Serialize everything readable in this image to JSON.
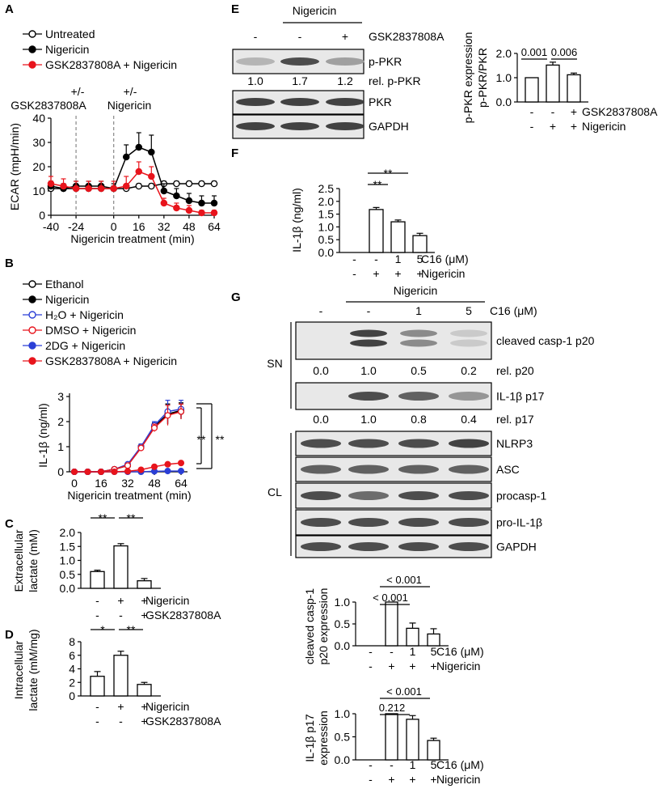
{
  "panelA": {
    "letter": "A",
    "legend": [
      "Untreated",
      "Nigericin",
      "GSK2837808A + Nigericin"
    ],
    "annot1": [
      "+/-",
      "GSK2837808A"
    ],
    "annot2": [
      "+/-",
      "Nigericin"
    ],
    "ylabel": "ECAR (mpH/min)",
    "xlabel": "Nigericin treatment (min)",
    "yticks": [
      "0",
      "10",
      "20",
      "30",
      "40"
    ],
    "xticks": [
      "-40",
      "-24",
      "0",
      "16",
      "32",
      "48",
      "64"
    ],
    "colors": {
      "untreated": "#000000",
      "nigericin": "#000000",
      "gsk": "#e8141c"
    }
  },
  "panelB": {
    "letter": "B",
    "legend": [
      "Ethanol",
      "Nigericin",
      "H₂O + Nigericin",
      "DMSO + Nigericin",
      "2DG + Nigericin",
      "GSK2837808A + Nigericin"
    ],
    "ylabel": "IL-1β (ng/ml)",
    "xlabel": "Nigericin treatment (min)",
    "yticks": [
      "0",
      "1",
      "2",
      "3"
    ],
    "xticks": [
      "0",
      "16",
      "32",
      "48",
      "64"
    ],
    "sig": [
      "**",
      "**"
    ],
    "colors": {
      "h2o": "#2b3fd6",
      "dmso": "#e8141c",
      "twoDG": "#2b3fd6",
      "gsk": "#e8141c"
    }
  },
  "panelC": {
    "letter": "C",
    "ylabel": [
      "Extracellular",
      "lactate (mM)"
    ],
    "yticks": [
      "0.0",
      "0.5",
      "1.0",
      "1.5",
      "2.0"
    ],
    "sig": [
      "**",
      "**"
    ],
    "rows": [
      {
        "label": "Nigericin",
        "vals": [
          "-",
          "+",
          "+"
        ]
      },
      {
        "label": "GSK2837808A",
        "vals": [
          "-",
          "-",
          "+"
        ]
      }
    ]
  },
  "panelD": {
    "letter": "D",
    "ylabel": [
      "Intracellular",
      "lactate (mM/mg)"
    ],
    "yticks": [
      "0",
      "2",
      "4",
      "6",
      "8"
    ],
    "sig": [
      "*",
      "**"
    ],
    "rows": [
      {
        "label": "Nigericin",
        "vals": [
          "-",
          "+",
          "+"
        ]
      },
      {
        "label": "GSK2837808A",
        "vals": [
          "-",
          "-",
          "+"
        ]
      }
    ]
  },
  "panelE": {
    "letter": "E",
    "header": "Nigericin",
    "gsk_label": "GSK2837808A",
    "gsk_vals": [
      "-",
      "-",
      "+"
    ],
    "bands": [
      "p-PKR",
      "PKR",
      "GAPDH"
    ],
    "rel_label": "rel. p-PKR",
    "rel_vals": [
      "1.0",
      "1.7",
      "1.2"
    ],
    "ylabel": [
      "p-PKR expression",
      "p-PKR/PKR"
    ],
    "yticks": [
      "0.0",
      "1.0",
      "2.0"
    ],
    "pvals": [
      "0.001",
      "0.006"
    ],
    "rows": [
      {
        "label": "GSK2837808A",
        "vals": [
          "-",
          "-",
          "+"
        ]
      },
      {
        "label": "Nigericin",
        "vals": [
          "-",
          "+",
          "+"
        ]
      }
    ]
  },
  "panelF": {
    "letter": "F",
    "ylabel": "IL-1β (ng/ml)",
    "yticks": [
      "0.0",
      "0.5",
      "1.0",
      "1.5",
      "2.0",
      "2.5"
    ],
    "sig": [
      "**",
      "**"
    ],
    "rows": [
      {
        "label": "C16 (μM)",
        "vals": [
          "-",
          "-",
          "1",
          "5"
        ]
      },
      {
        "label": "Nigericin",
        "vals": [
          "-",
          "+",
          "+",
          "+"
        ]
      }
    ]
  },
  "panelG": {
    "letter": "G",
    "header": "Nigericin",
    "c16_label": "C16 (μM)",
    "c16_vals": [
      "-",
      "-",
      "1",
      "5"
    ],
    "sn": "SN",
    "cl": "CL",
    "bands": [
      "cleaved casp-1 p20",
      "IL-1β p17",
      "NLRP3",
      "ASC",
      "procasp-1",
      "pro-IL-1β",
      "GAPDH"
    ],
    "rel_p20_label": "rel. p20",
    "rel_p20": [
      "0.0",
      "1.0",
      "0.5",
      "0.2"
    ],
    "rel_p17_label": "rel. p17",
    "rel_p17": [
      "0.0",
      "1.0",
      "0.8",
      "0.4"
    ],
    "bar1": {
      "ylabel": [
        "cleaved casp-1",
        "p20 expression"
      ],
      "yticks": [
        "0.0",
        "0.5",
        "1.0"
      ],
      "pvals": [
        "< 0.001",
        "< 0.001"
      ]
    },
    "bar2": {
      "ylabel": [
        "IL-1β p17",
        "expression"
      ],
      "yticks": [
        "0.0",
        "0.5",
        "1.0"
      ],
      "pvals": [
        "< 0.001",
        "0.212"
      ]
    },
    "rows": [
      {
        "label": "C16 (μM)",
        "vals": [
          "-",
          "-",
          "1",
          "5"
        ]
      },
      {
        "label": "Nigericin",
        "vals": [
          "-",
          "+",
          "+",
          "+"
        ]
      }
    ]
  },
  "chart_data": [
    {
      "type": "line",
      "panel": "A",
      "xlabel": "Nigericin treatment (min)",
      "ylabel": "ECAR (mpH/min)",
      "xlim": [
        -40,
        64
      ],
      "ylim": [
        0,
        40
      ],
      "x": [
        -40,
        -32,
        -24,
        -16,
        -8,
        0,
        8,
        16,
        24,
        32,
        40,
        48,
        56,
        64
      ],
      "series": [
        {
          "name": "Untreated",
          "values": [
            11,
            11,
            11,
            11,
            11,
            11,
            11,
            12,
            12,
            13,
            13,
            13,
            13,
            13
          ],
          "err": [
            1,
            1,
            1,
            1,
            1,
            1,
            1,
            1,
            1,
            1,
            1,
            1,
            1,
            1
          ]
        },
        {
          "name": "Nigericin",
          "values": [
            12,
            11,
            12,
            12,
            12,
            11,
            24,
            28,
            26,
            10,
            8,
            6,
            5,
            5
          ],
          "err": [
            2,
            2,
            2,
            2,
            2,
            2,
            5,
            6,
            7,
            3,
            3,
            3,
            3,
            3
          ]
        },
        {
          "name": "GSK2837808A + Nigericin",
          "values": [
            13,
            12,
            11,
            11,
            11,
            11,
            12,
            18,
            16,
            5,
            3,
            2,
            1,
            1
          ],
          "err": [
            3,
            3,
            3,
            3,
            3,
            3,
            4,
            4,
            4,
            2,
            2,
            2,
            1,
            1
          ]
        }
      ]
    },
    {
      "type": "line",
      "panel": "B",
      "xlabel": "Nigericin treatment (min)",
      "ylabel": "IL-1β (ng/ml)",
      "xlim": [
        0,
        64
      ],
      "ylim": [
        0,
        3
      ],
      "x": [
        0,
        8,
        16,
        24,
        32,
        40,
        48,
        56,
        64
      ],
      "series": [
        {
          "name": "Ethanol",
          "values": [
            0,
            0,
            0,
            0.1,
            0.25,
            1.0,
            1.8,
            2.3,
            2.4
          ],
          "err": [
            0,
            0,
            0,
            0,
            0.05,
            0.1,
            0.15,
            0.4,
            0.3
          ]
        },
        {
          "name": "Nigericin",
          "values": [
            0,
            0,
            0,
            0.1,
            0.25,
            1.0,
            1.8,
            2.3,
            2.45
          ],
          "err": [
            0,
            0,
            0,
            0,
            0.05,
            0.1,
            0.15,
            0.4,
            0.3
          ]
        },
        {
          "name": "H₂O + Nigericin",
          "values": [
            0,
            0,
            0,
            0.1,
            0.3,
            1.0,
            1.85,
            2.4,
            2.5
          ],
          "err": [
            0,
            0,
            0,
            0,
            0.05,
            0.1,
            0.15,
            0.45,
            0.35
          ]
        },
        {
          "name": "DMSO + Nigericin",
          "values": [
            0,
            0,
            0,
            0.1,
            0.25,
            0.95,
            1.75,
            2.25,
            2.4
          ],
          "err": [
            0,
            0,
            0,
            0,
            0.05,
            0.1,
            0.15,
            0.4,
            0.3
          ]
        },
        {
          "name": "2DG + Nigericin",
          "values": [
            0,
            0,
            0,
            0,
            0,
            0,
            0.02,
            0.03,
            0.03
          ],
          "err": [
            0,
            0,
            0,
            0,
            0,
            0,
            0,
            0,
            0
          ]
        },
        {
          "name": "GSK2837808A + Nigericin",
          "values": [
            0,
            0,
            0,
            0,
            0.02,
            0.08,
            0.2,
            0.3,
            0.35
          ],
          "err": [
            0,
            0,
            0,
            0,
            0,
            0,
            0,
            0,
            0
          ]
        }
      ]
    },
    {
      "type": "bar",
      "panel": "C",
      "ylim": [
        0,
        2
      ],
      "values": [
        0.6,
        1.52,
        0.27
      ],
      "err": [
        0.05,
        0.08,
        0.08
      ]
    },
    {
      "type": "bar",
      "panel": "D",
      "ylim": [
        0,
        8
      ],
      "values": [
        2.9,
        6.0,
        1.7
      ],
      "err": [
        0.7,
        0.6,
        0.3
      ]
    },
    {
      "type": "bar",
      "panel": "E",
      "ylim": [
        0,
        2
      ],
      "values": [
        1.0,
        1.52,
        1.12
      ],
      "err": [
        0,
        0.12,
        0.07
      ]
    },
    {
      "type": "bar",
      "panel": "F",
      "ylim": [
        0,
        2.5
      ],
      "values": [
        0,
        1.68,
        1.2,
        0.66
      ],
      "err": [
        0,
        0.08,
        0.07,
        0.09
      ]
    },
    {
      "type": "bar",
      "panel": "G1",
      "ylim": [
        0,
        1
      ],
      "values": [
        0,
        1.0,
        0.4,
        0.27
      ],
      "err": [
        0,
        0,
        0.12,
        0.12
      ]
    },
    {
      "type": "bar",
      "panel": "G2",
      "ylim": [
        0,
        1
      ],
      "values": [
        0,
        1.0,
        0.88,
        0.42
      ],
      "err": [
        0,
        0,
        0.08,
        0.05
      ]
    }
  ]
}
